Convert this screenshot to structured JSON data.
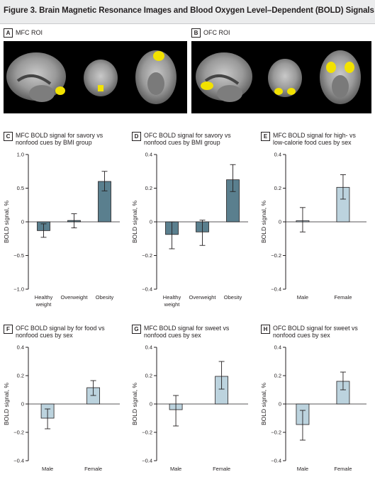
{
  "figure_title": "Figure 3. Brain Magnetic Resonance Images and Blood Oxygen Level–Dependent (BOLD) Signals",
  "panels": {
    "A": {
      "letter": "A",
      "title": "MFC ROI"
    },
    "B": {
      "letter": "B",
      "title": "OFC ROI"
    },
    "C": {
      "letter": "C",
      "title_lines": [
        "MFC BOLD signal for savory vs",
        "nonfood cues by BMI group"
      ]
    },
    "D": {
      "letter": "D",
      "title_lines": [
        "OFC BOLD signal for savory vs",
        "nonfood cues by BMI group"
      ]
    },
    "E": {
      "letter": "E",
      "title_lines": [
        "MFC BOLD signal for high- vs",
        "low-calorie food cues by sex"
      ]
    },
    "F": {
      "letter": "F",
      "title_lines": [
        "OFC BOLD signal by for food vs",
        "nonfood cues by sex"
      ]
    },
    "G": {
      "letter": "G",
      "title_lines": [
        "MFC BOLD signal for sweet vs",
        "nonfood cues by sex"
      ]
    },
    "H": {
      "letter": "H",
      "title_lines": [
        "OFC BOLD signal for sweet vs",
        "nonfood cues by sex"
      ]
    }
  },
  "colors": {
    "bmi_bar": "#5a7f8e",
    "sex_bar": "#bcd3de",
    "bar_stroke": "#231f20",
    "highlight": "#f2e200"
  },
  "chart_data": [
    {
      "id": "C",
      "type": "bar",
      "ylabel": "BOLD signal, %",
      "ylim": [
        -1.0,
        1.0
      ],
      "yticks": [
        -1.0,
        -0.5,
        0,
        0.5,
        1.0
      ],
      "ytick_labels": [
        "−1.0",
        "−0.5",
        "0",
        "0.5",
        "1.0"
      ],
      "categories": [
        [
          "Healthy",
          "weight"
        ],
        [
          "Overweight"
        ],
        [
          "Obesity"
        ]
      ],
      "values": [
        -0.13,
        0.02,
        0.6
      ],
      "error_low": [
        -0.23,
        -0.09,
        0.46
      ],
      "error_high": [
        -0.03,
        0.12,
        0.75
      ],
      "color_key": "bmi_bar"
    },
    {
      "id": "D",
      "type": "bar",
      "ylabel": "BOLD signal, %",
      "ylim": [
        -0.4,
        0.4
      ],
      "yticks": [
        -0.4,
        -0.2,
        0,
        0.2,
        0.4
      ],
      "ytick_labels": [
        "−0.4",
        "−0.2",
        "0",
        "0.2",
        "0.4"
      ],
      "categories": [
        [
          "Healthy",
          "weight"
        ],
        [
          "Overweight"
        ],
        [
          "Obesity"
        ]
      ],
      "values": [
        -0.075,
        -0.06,
        0.25
      ],
      "error_low": [
        -0.16,
        -0.14,
        0.18
      ],
      "error_high": [
        0.0,
        0.01,
        0.34
      ],
      "color_key": "bmi_bar"
    },
    {
      "id": "E",
      "type": "bar",
      "ylabel": "BOLD signal, %",
      "ylim": [
        -0.4,
        0.4
      ],
      "yticks": [
        -0.4,
        -0.2,
        0,
        0.2,
        0.4
      ],
      "ytick_labels": [
        "−0.4",
        "−0.2",
        "0",
        "0.2",
        "0.4"
      ],
      "categories": [
        [
          "Male"
        ],
        [
          "Female"
        ]
      ],
      "values": [
        0.007,
        0.205
      ],
      "error_low": [
        -0.06,
        0.135
      ],
      "error_high": [
        0.085,
        0.28
      ],
      "color_key": "sex_bar"
    },
    {
      "id": "F",
      "type": "bar",
      "ylabel": "BOLD signal, %",
      "ylim": [
        -0.4,
        0.4
      ],
      "yticks": [
        -0.4,
        -0.2,
        0,
        0.2,
        0.4
      ],
      "ytick_labels": [
        "−0.4",
        "−0.2",
        "0",
        "0.2",
        "0.4"
      ],
      "categories": [
        [
          "Male"
        ],
        [
          "Female"
        ]
      ],
      "values": [
        -0.1,
        0.115
      ],
      "error_low": [
        -0.175,
        0.06
      ],
      "error_high": [
        -0.035,
        0.165
      ],
      "color_key": "sex_bar"
    },
    {
      "id": "G",
      "type": "bar",
      "ylabel": "BOLD signal, %",
      "ylim": [
        -0.4,
        0.4
      ],
      "yticks": [
        -0.4,
        -0.2,
        0,
        0.2,
        0.4
      ],
      "ytick_labels": [
        "−0.4",
        "−0.2",
        "0",
        "0.2",
        "0.4"
      ],
      "categories": [
        [
          "Male"
        ],
        [
          "Female"
        ]
      ],
      "values": [
        -0.04,
        0.195
      ],
      "error_low": [
        -0.155,
        0.105
      ],
      "error_high": [
        0.06,
        0.3
      ],
      "color_key": "sex_bar"
    },
    {
      "id": "H",
      "type": "bar",
      "ylabel": "BOLD signal, %",
      "ylim": [
        -0.4,
        0.4
      ],
      "yticks": [
        -0.4,
        -0.2,
        0,
        0.2,
        0.4
      ],
      "ytick_labels": [
        "−0.4",
        "−0.2",
        "0",
        "0.2",
        "0.4"
      ],
      "categories": [
        [
          "Male"
        ],
        [
          "Female"
        ]
      ],
      "values": [
        -0.145,
        0.16
      ],
      "error_low": [
        -0.255,
        0.1
      ],
      "error_high": [
        -0.045,
        0.225
      ],
      "color_key": "sex_bar"
    }
  ]
}
